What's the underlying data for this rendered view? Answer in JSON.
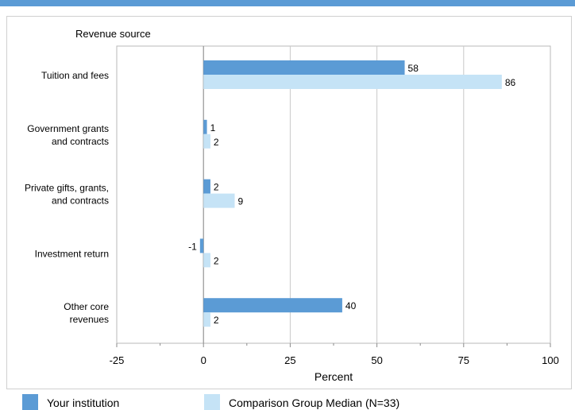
{
  "chart_data": {
    "type": "bar",
    "orientation": "horizontal",
    "categories": [
      [
        "Tuition and fees"
      ],
      [
        "Government grants",
        "and contracts"
      ],
      [
        "Private gifts, grants,",
        "and contracts"
      ],
      [
        "Investment return"
      ],
      [
        "Other core",
        "revenues"
      ]
    ],
    "series": [
      {
        "name": "Your institution",
        "color": "#5b9bd5",
        "values": [
          58,
          1,
          2,
          -1,
          40
        ]
      },
      {
        "name": "Comparison Group Median (N=33)",
        "color": "#c5e3f6",
        "values": [
          86,
          2,
          9,
          2,
          2
        ]
      }
    ],
    "ylabel": "Revenue source",
    "xlabel": "Percent",
    "xlim": [
      -25,
      100
    ],
    "xticks": [
      "-25",
      "0",
      "25",
      "50",
      "75",
      "100"
    ],
    "grid": true,
    "legend_position": "bottom"
  }
}
